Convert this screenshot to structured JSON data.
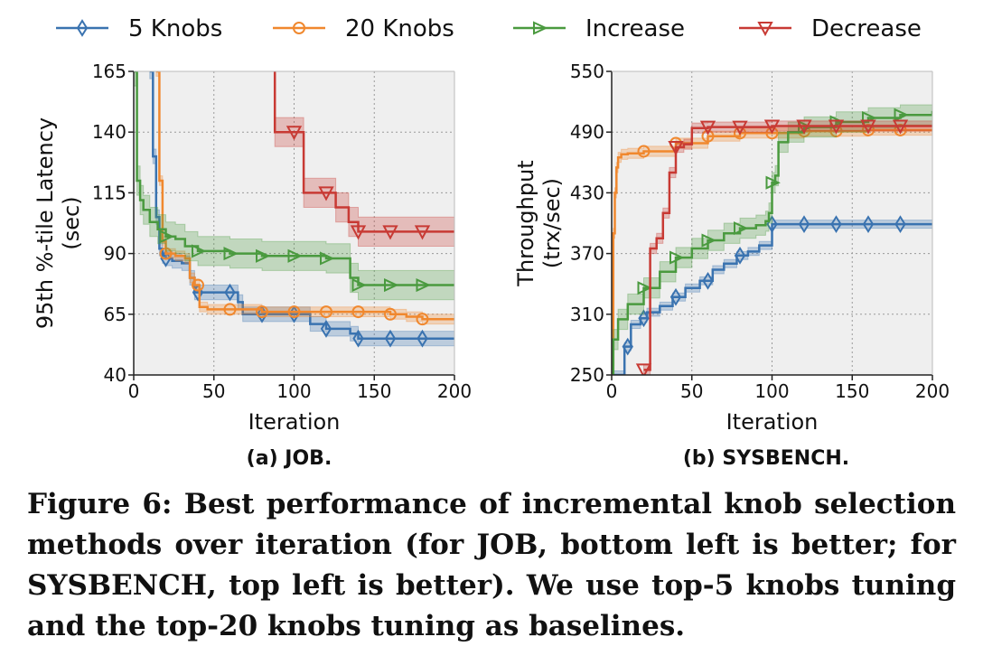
{
  "legend": [
    {
      "name": "5 Knobs",
      "color": "#3a73b0",
      "marker": "diamond"
    },
    {
      "name": "20 Knobs",
      "color": "#f0882e",
      "marker": "circle"
    },
    {
      "name": "Increase",
      "color": "#4a9a3f",
      "marker": "triangle-right"
    },
    {
      "name": "Decrease",
      "color": "#c83a34",
      "marker": "triangle-down"
    }
  ],
  "subcaptions": {
    "a": "(a) JOB.",
    "b": "(b) SYSBENCH."
  },
  "caption": "Figure 6: Best performance of incremental knob selection methods over iteration (for JOB, bottom left is better; for SYSBENCH, top left is better). We use top-5 knobs tuning and the top-20 knobs tuning as baselines.",
  "chart_data": [
    {
      "type": "line",
      "panel": "a",
      "xlabel": "Iteration",
      "ylabel": [
        "95th %-tile Latency",
        "(sec)"
      ],
      "xlim": [
        0,
        200
      ],
      "ylim": [
        40,
        165
      ],
      "xticks": [
        0,
        50,
        100,
        150,
        200
      ],
      "yticks": [
        40,
        65,
        90,
        115,
        140,
        165
      ],
      "grid": true,
      "series": [
        {
          "name": "5 Knobs",
          "color": "#3a73b0",
          "marker": "diamond",
          "x": [
            10,
            12,
            14,
            16,
            18,
            20,
            24,
            30,
            35,
            38,
            44,
            50,
            60,
            65,
            68,
            80,
            100,
            110,
            120,
            130,
            135,
            140,
            160,
            180,
            200
          ],
          "y": [
            165,
            130,
            105,
            92,
            89,
            88,
            87,
            86,
            80,
            74,
            74,
            74,
            74,
            70,
            65,
            65,
            65,
            61,
            59,
            59,
            57,
            55,
            55,
            55,
            55
          ],
          "band": 3,
          "markers_x": [
            20,
            40,
            60,
            80,
            100,
            120,
            140,
            160,
            180
          ]
        },
        {
          "name": "20 Knobs",
          "color": "#f0882e",
          "marker": "circle",
          "x": [
            14,
            16,
            18,
            20,
            26,
            32,
            35,
            38,
            41,
            46,
            60,
            80,
            100,
            120,
            140,
            160,
            170,
            180,
            200
          ],
          "y": [
            165,
            120,
            95,
            90,
            89,
            88,
            80,
            77,
            68,
            67,
            67,
            66,
            66,
            66,
            66,
            65,
            64,
            63,
            63
          ],
          "band": 2,
          "markers_x": [
            20,
            40,
            60,
            80,
            100,
            120,
            140,
            160,
            180
          ]
        },
        {
          "name": "Increase",
          "color": "#4a9a3f",
          "marker": "triangle-right",
          "x": [
            0,
            2,
            4,
            6,
            10,
            15,
            20,
            26,
            32,
            40,
            60,
            80,
            100,
            120,
            130,
            135,
            140,
            160,
            180,
            200
          ],
          "y": [
            165,
            120,
            112,
            108,
            103,
            100,
            97,
            96,
            93,
            91,
            90,
            89,
            89,
            88,
            88,
            80,
            77,
            77,
            77,
            77
          ],
          "band": 6,
          "markers_x": [
            20,
            40,
            60,
            80,
            100,
            120,
            140,
            160,
            180
          ]
        },
        {
          "name": "Decrease",
          "color": "#c83a34",
          "marker": "triangle-down",
          "x": [
            88,
            88,
            100,
            106,
            120,
            126,
            134,
            140,
            160,
            180,
            200
          ],
          "y": [
            165,
            140,
            140,
            115,
            115,
            109,
            103,
            99,
            99,
            99,
            99
          ],
          "band": 6,
          "markers_x": [
            100,
            120,
            140,
            160,
            180
          ]
        }
      ]
    },
    {
      "type": "line",
      "panel": "b",
      "xlabel": "Iteration",
      "ylabel": [
        "Throughput",
        "(trx/sec)"
      ],
      "xlim": [
        0,
        200
      ],
      "ylim": [
        250,
        550
      ],
      "xticks": [
        0,
        50,
        100,
        150,
        200
      ],
      "yticks": [
        250,
        310,
        370,
        430,
        490,
        550
      ],
      "grid": true,
      "series": [
        {
          "name": "5 Knobs",
          "color": "#3a73b0",
          "marker": "diamond",
          "x": [
            0,
            6,
            8,
            12,
            18,
            22,
            30,
            38,
            46,
            55,
            63,
            70,
            78,
            85,
            92,
            100,
            110,
            140,
            200
          ],
          "y": [
            250,
            250,
            278,
            300,
            306,
            312,
            318,
            327,
            336,
            343,
            354,
            360,
            368,
            372,
            378,
            399,
            399,
            399,
            400
          ],
          "band": 4,
          "markers_x": [
            10,
            20,
            40,
            60,
            80,
            100,
            120,
            140,
            160,
            180
          ]
        },
        {
          "name": "20 Knobs",
          "color": "#f0882e",
          "marker": "circle",
          "x": [
            0,
            1,
            2,
            3,
            4,
            6,
            10,
            20,
            40,
            60,
            80,
            100,
            120,
            140,
            160,
            180,
            200
          ],
          "y": [
            260,
            390,
            430,
            455,
            465,
            468,
            469,
            471,
            479,
            486,
            489,
            489,
            491,
            491,
            492,
            492,
            493
          ],
          "band": 5,
          "markers_x": [
            20,
            40,
            60,
            80,
            100,
            120,
            140,
            160,
            180
          ]
        },
        {
          "name": "Increase",
          "color": "#4a9a3f",
          "marker": "triangle-right",
          "x": [
            0,
            1,
            4,
            10,
            20,
            30,
            40,
            50,
            60,
            70,
            80,
            90,
            96,
            98,
            100,
            102,
            104,
            110,
            120,
            140,
            160,
            180,
            200
          ],
          "y": [
            250,
            285,
            305,
            320,
            336,
            352,
            366,
            375,
            383,
            390,
            395,
            398,
            402,
            410,
            440,
            447,
            480,
            490,
            495,
            500,
            504,
            507,
            511
          ],
          "band": 10,
          "markers_x": [
            20,
            40,
            60,
            80,
            100,
            120,
            140,
            160,
            180
          ]
        },
        {
          "name": "Decrease",
          "color": "#c83a34",
          "marker": "triangle-down",
          "x": [
            20,
            22,
            24,
            28,
            32,
            36,
            40,
            45,
            50,
            60,
            80,
            100,
            120,
            140,
            160,
            180,
            200
          ],
          "y": [
            255,
            255,
            375,
            385,
            410,
            450,
            475,
            478,
            494,
            495,
            495,
            496,
            496,
            496,
            496,
            496,
            496
          ],
          "band": 5,
          "markers_x": [
            20,
            40,
            60,
            80,
            100,
            120,
            140,
            160,
            180
          ]
        }
      ]
    }
  ]
}
